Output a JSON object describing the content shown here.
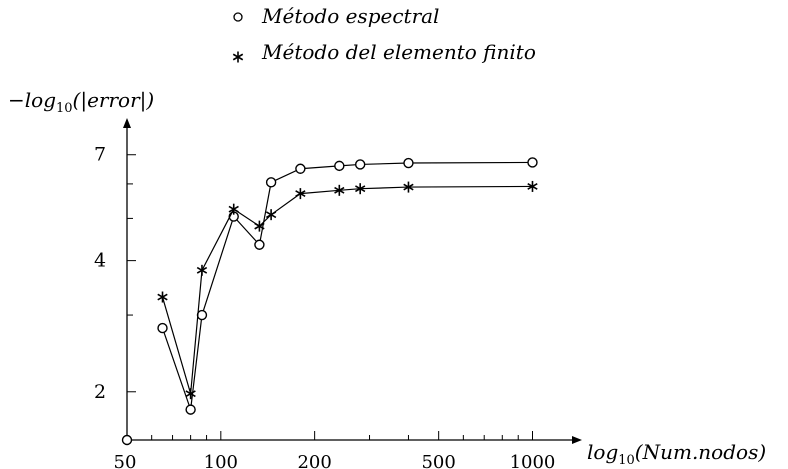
{
  "chart_data": {
    "type": "line",
    "xscale": "log",
    "yscale": "log",
    "xlim": [
      50,
      1300
    ],
    "ylim": [
      1.55,
      8.5
    ],
    "xticks": [
      50,
      100,
      200,
      500,
      1000
    ],
    "xtick_labels": [
      "50",
      "100",
      "200",
      "500",
      "1000"
    ],
    "yticks": [
      2,
      4,
      7
    ],
    "ytick_labels": [
      "2",
      "4",
      "7"
    ],
    "xlabel": {
      "base": "log",
      "sub": "10",
      "rest": "(Num.nodos)"
    },
    "ylabel": {
      "prefix": "−log",
      "sub": "10",
      "rest": "(|error|)"
    },
    "legend_position": "top-center",
    "series": [
      {
        "name": "Método espectral",
        "marker": "circle",
        "x": [
          65,
          80,
          87,
          110,
          133,
          145,
          180,
          240,
          280,
          400,
          1000
        ],
        "y": [
          2.8,
          1.82,
          3.0,
          5.05,
          4.35,
          6.05,
          6.5,
          6.6,
          6.65,
          6.7,
          6.72
        ]
      },
      {
        "name": "Método del elemento finito",
        "marker": "star",
        "x": [
          65,
          80,
          87,
          110,
          133,
          145,
          180,
          240,
          280,
          400,
          1000
        ],
        "y": [
          3.3,
          1.98,
          3.8,
          5.25,
          4.8,
          5.1,
          5.7,
          5.8,
          5.85,
          5.9,
          5.92
        ]
      }
    ]
  }
}
